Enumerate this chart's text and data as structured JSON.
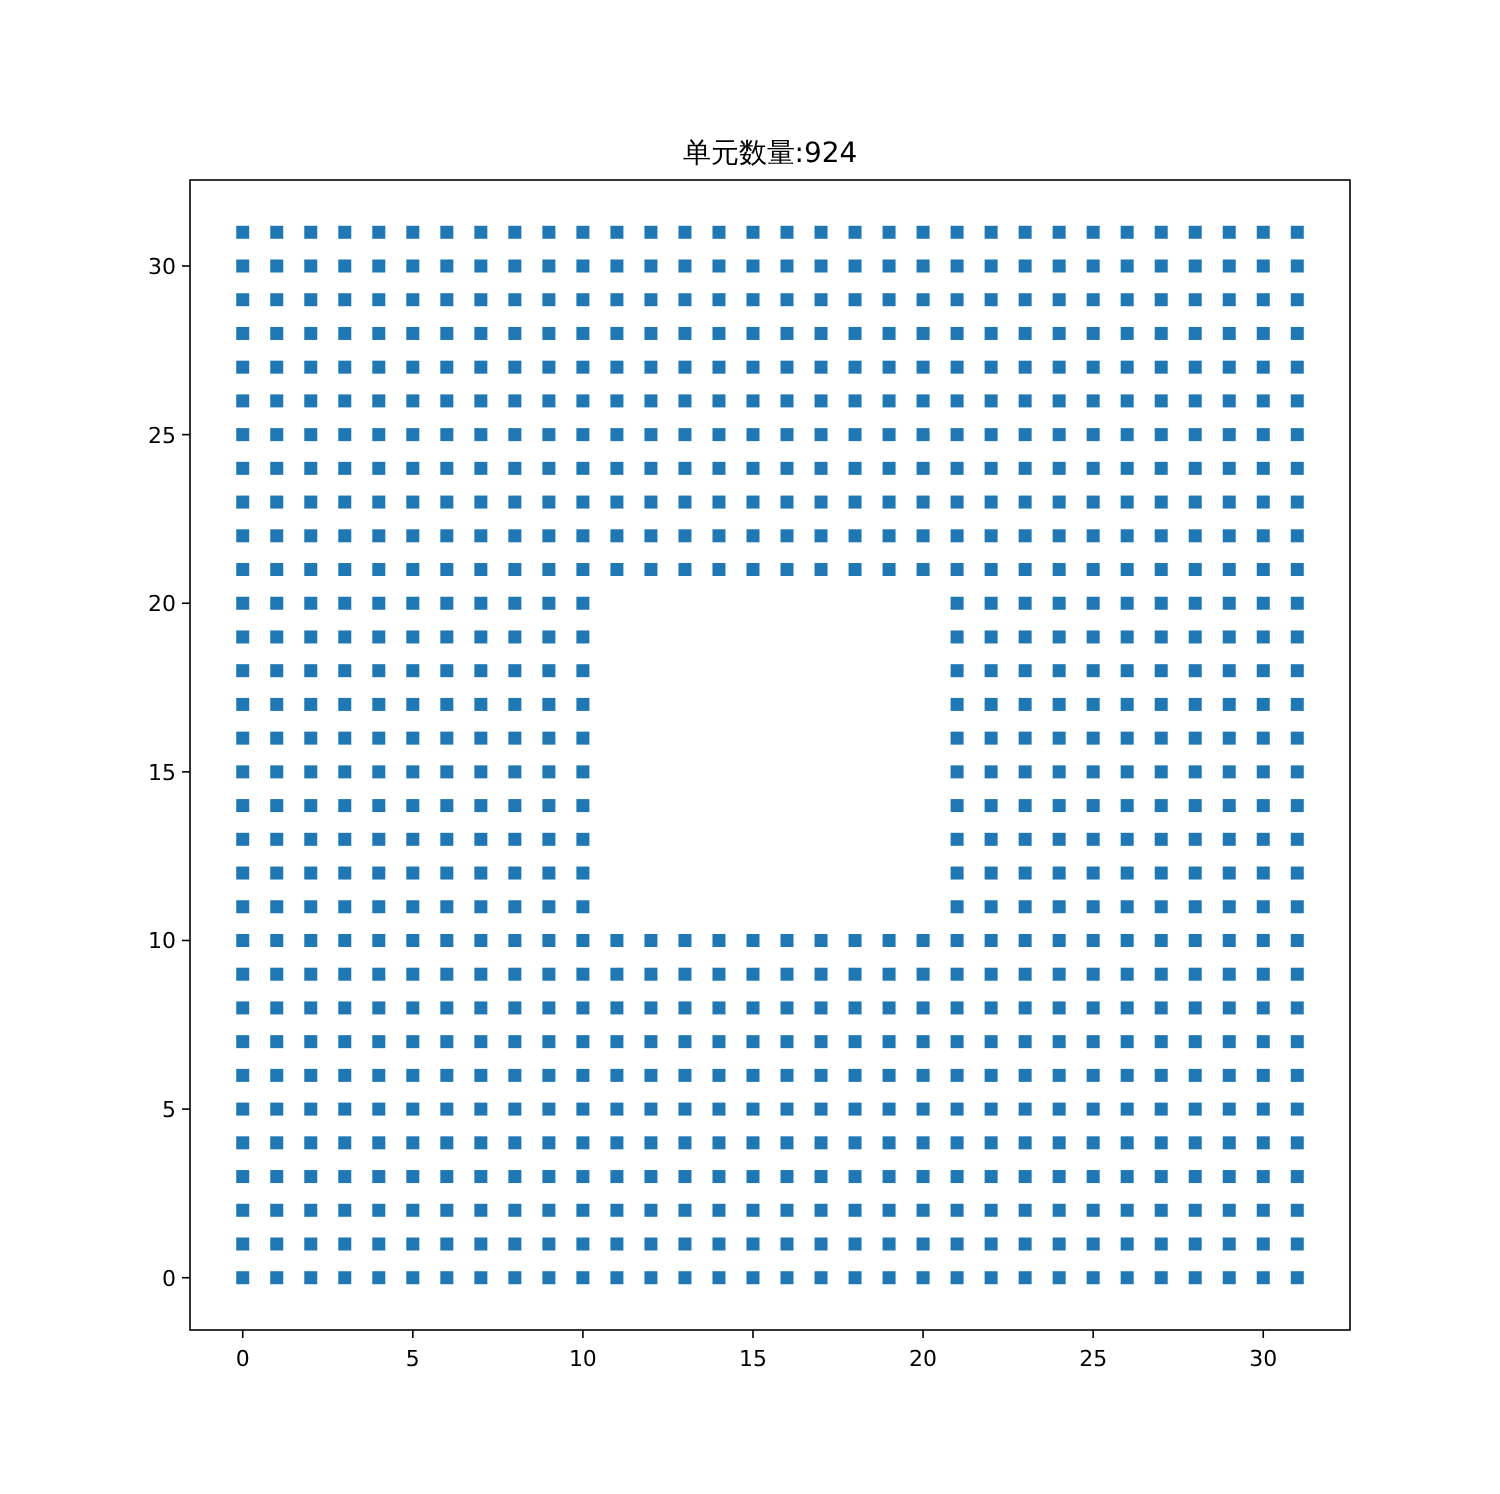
{
  "chart_data": {
    "type": "scatter",
    "title": "单元数量:924",
    "marker": "square",
    "grid": false,
    "xlim": [
      -1.55,
      32.55
    ],
    "ylim": [
      -1.55,
      32.55
    ],
    "xticks": [
      0,
      5,
      10,
      15,
      20,
      25,
      30
    ],
    "yticks": [
      0,
      5,
      10,
      15,
      20,
      25,
      30
    ],
    "series": [
      {
        "color": "#1f77b4",
        "x": [
          0,
          1,
          2,
          3,
          4,
          5,
          6,
          7,
          8,
          9,
          10,
          11,
          12,
          13,
          14,
          15,
          16,
          17,
          18,
          19,
          20,
          21,
          22,
          23,
          24,
          25,
          26,
          27,
          28,
          29,
          30,
          31,
          0,
          1,
          2,
          3,
          4,
          5,
          6,
          7,
          8,
          9,
          10,
          11,
          12,
          13,
          14,
          15,
          16,
          17,
          18,
          19,
          20,
          21,
          22,
          23,
          24,
          25,
          26,
          27,
          28,
          29,
          30,
          31,
          0,
          1,
          2,
          3,
          4,
          5,
          6,
          7,
          8,
          9,
          10,
          11,
          12,
          13,
          14,
          15,
          16,
          17,
          18,
          19,
          20,
          21,
          22,
          23,
          24,
          25,
          26,
          27,
          28,
          29,
          30,
          31,
          0,
          1,
          2,
          3,
          4,
          5,
          6,
          7,
          8,
          9,
          10,
          11,
          12,
          13,
          14,
          15,
          16,
          17,
          18,
          19,
          20,
          21,
          22,
          23,
          24,
          25,
          26,
          27,
          28,
          29,
          30,
          31,
          0,
          1,
          2,
          3,
          4,
          5,
          6,
          7,
          8,
          9,
          10,
          11,
          12,
          13,
          14,
          15,
          16,
          17,
          18,
          19,
          20,
          21,
          22,
          23,
          24,
          25,
          26,
          27,
          28,
          29,
          30,
          31,
          0,
          1,
          2,
          3,
          4,
          5,
          6,
          7,
          8,
          9,
          10,
          11,
          12,
          13,
          14,
          15,
          16,
          17,
          18,
          19,
          20,
          21,
          22,
          23,
          24,
          25,
          26,
          27,
          28,
          29,
          30,
          31,
          0,
          1,
          2,
          3,
          4,
          5,
          6,
          7,
          8,
          9,
          10,
          11,
          12,
          13,
          14,
          15,
          16,
          17,
          18,
          19,
          20,
          21,
          22,
          23,
          24,
          25,
          26,
          27,
          28,
          29,
          30,
          31,
          0,
          1,
          2,
          3,
          4,
          5,
          6,
          7,
          8,
          9,
          10,
          11,
          12,
          13,
          14,
          15,
          16,
          17,
          18,
          19,
          20,
          21,
          22,
          23,
          24,
          25,
          26,
          27,
          28,
          29,
          30,
          31,
          0,
          1,
          2,
          3,
          4,
          5,
          6,
          7,
          8,
          9,
          10,
          11,
          12,
          13,
          14,
          15,
          16,
          17,
          18,
          19,
          20,
          21,
          22,
          23,
          24,
          25,
          26,
          27,
          28,
          29,
          30,
          31,
          0,
          1,
          2,
          3,
          4,
          5,
          6,
          7,
          8,
          9,
          10,
          11,
          12,
          13,
          14,
          15,
          16,
          17,
          18,
          19,
          20,
          21,
          22,
          23,
          24,
          25,
          26,
          27,
          28,
          29,
          30,
          31,
          0,
          1,
          2,
          3,
          4,
          5,
          6,
          7,
          8,
          9,
          10,
          11,
          12,
          13,
          14,
          15,
          16,
          17,
          18,
          19,
          20,
          21,
          22,
          23,
          24,
          25,
          26,
          27,
          28,
          29,
          30,
          31,
          0,
          1,
          2,
          3,
          4,
          5,
          6,
          7,
          8,
          9,
          10,
          21,
          22,
          23,
          24,
          25,
          26,
          27,
          28,
          29,
          30,
          31,
          0,
          1,
          2,
          3,
          4,
          5,
          6,
          7,
          8,
          9,
          10,
          21,
          22,
          23,
          24,
          25,
          26,
          27,
          28,
          29,
          30,
          31,
          0,
          1,
          2,
          3,
          4,
          5,
          6,
          7,
          8,
          9,
          10,
          21,
          22,
          23,
          24,
          25,
          26,
          27,
          28,
          29,
          30,
          31,
          0,
          1,
          2,
          3,
          4,
          5,
          6,
          7,
          8,
          9,
          10,
          21,
          22,
          23,
          24,
          25,
          26,
          27,
          28,
          29,
          30,
          31,
          0,
          1,
          2,
          3,
          4,
          5,
          6,
          7,
          8,
          9,
          10,
          21,
          22,
          23,
          24,
          25,
          26,
          27,
          28,
          29,
          30,
          31,
          0,
          1,
          2,
          3,
          4,
          5,
          6,
          7,
          8,
          9,
          10,
          21,
          22,
          23,
          24,
          25,
          26,
          27,
          28,
          29,
          30,
          31,
          0,
          1,
          2,
          3,
          4,
          5,
          6,
          7,
          8,
          9,
          10,
          21,
          22,
          23,
          24,
          25,
          26,
          27,
          28,
          29,
          30,
          31,
          0,
          1,
          2,
          3,
          4,
          5,
          6,
          7,
          8,
          9,
          10,
          21,
          22,
          23,
          24,
          25,
          26,
          27,
          28,
          29,
          30,
          31,
          0,
          1,
          2,
          3,
          4,
          5,
          6,
          7,
          8,
          9,
          10,
          21,
          22,
          23,
          24,
          25,
          26,
          27,
          28,
          29,
          30,
          31,
          0,
          1,
          2,
          3,
          4,
          5,
          6,
          7,
          8,
          9,
          10,
          21,
          22,
          23,
          24,
          25,
          26,
          27,
          28,
          29,
          30,
          31,
          0,
          1,
          2,
          3,
          4,
          5,
          6,
          7,
          8,
          9,
          10,
          11,
          12,
          13,
          14,
          15,
          16,
          17,
          18,
          19,
          20,
          21,
          22,
          23,
          24,
          25,
          26,
          27,
          28,
          29,
          30,
          31,
          0,
          1,
          2,
          3,
          4,
          5,
          6,
          7,
          8,
          9,
          10,
          11,
          12,
          13,
          14,
          15,
          16,
          17,
          18,
          19,
          20,
          21,
          22,
          23,
          24,
          25,
          26,
          27,
          28,
          29,
          30,
          31,
          0,
          1,
          2,
          3,
          4,
          5,
          6,
          7,
          8,
          9,
          10,
          11,
          12,
          13,
          14,
          15,
          16,
          17,
          18,
          19,
          20,
          21,
          22,
          23,
          24,
          25,
          26,
          27,
          28,
          29,
          30,
          31,
          0,
          1,
          2,
          3,
          4,
          5,
          6,
          7,
          8,
          9,
          10,
          11,
          12,
          13,
          14,
          15,
          16,
          17,
          18,
          19,
          20,
          21,
          22,
          23,
          24,
          25,
          26,
          27,
          28,
          29,
          30,
          31,
          0,
          1,
          2,
          3,
          4,
          5,
          6,
          7,
          8,
          9,
          10,
          11,
          12,
          13,
          14,
          15,
          16,
          17,
          18,
          19,
          20,
          21,
          22,
          23,
          24,
          25,
          26,
          27,
          28,
          29,
          30,
          31,
          0,
          1,
          2,
          3,
          4,
          5,
          6,
          7,
          8,
          9,
          10,
          11,
          12,
          13,
          14,
          15,
          16,
          17,
          18,
          19,
          20,
          21,
          22,
          23,
          24,
          25,
          26,
          27,
          28,
          29,
          30,
          31,
          0,
          1,
          2,
          3,
          4,
          5,
          6,
          7,
          8,
          9,
          10,
          11,
          12,
          13,
          14,
          15,
          16,
          17,
          18,
          19,
          20,
          21,
          22,
          23,
          24,
          25,
          26,
          27,
          28,
          29,
          30,
          31,
          0,
          1,
          2,
          3,
          4,
          5,
          6,
          7,
          8,
          9,
          10,
          11,
          12,
          13,
          14,
          15,
          16,
          17,
          18,
          19,
          20,
          21,
          22,
          23,
          24,
          25,
          26,
          27,
          28,
          29,
          30,
          31,
          0,
          1,
          2,
          3,
          4,
          5,
          6,
          7,
          8,
          9,
          10,
          11,
          12,
          13,
          14,
          15,
          16,
          17,
          18,
          19,
          20,
          21,
          22,
          23,
          24,
          25,
          26,
          27,
          28,
          29,
          30,
          31,
          0,
          1,
          2,
          3,
          4,
          5,
          6,
          7,
          8,
          9,
          10,
          11,
          12,
          13,
          14,
          15,
          16,
          17,
          18,
          19,
          20,
          21,
          22,
          23,
          24,
          25,
          26,
          27,
          28,
          29,
          30,
          31,
          0,
          1,
          2,
          3,
          4,
          5,
          6,
          7,
          8,
          9,
          10,
          11,
          12,
          13,
          14,
          15,
          16,
          17,
          18,
          19,
          20,
          21,
          22,
          23,
          24,
          25,
          26,
          27,
          28,
          29,
          30,
          31
        ],
        "values": [
          0,
          0,
          0,
          0,
          0,
          0,
          0,
          0,
          0,
          0,
          0,
          0,
          0,
          0,
          0,
          0,
          0,
          0,
          0,
          0,
          0,
          0,
          0,
          0,
          0,
          0,
          0,
          0,
          0,
          0,
          0,
          0,
          1,
          1,
          1,
          1,
          1,
          1,
          1,
          1,
          1,
          1,
          1,
          1,
          1,
          1,
          1,
          1,
          1,
          1,
          1,
          1,
          1,
          1,
          1,
          1,
          1,
          1,
          1,
          1,
          1,
          1,
          1,
          1,
          2,
          2,
          2,
          2,
          2,
          2,
          2,
          2,
          2,
          2,
          2,
          2,
          2,
          2,
          2,
          2,
          2,
          2,
          2,
          2,
          2,
          2,
          2,
          2,
          2,
          2,
          2,
          2,
          2,
          2,
          2,
          2,
          3,
          3,
          3,
          3,
          3,
          3,
          3,
          3,
          3,
          3,
          3,
          3,
          3,
          3,
          3,
          3,
          3,
          3,
          3,
          3,
          3,
          3,
          3,
          3,
          3,
          3,
          3,
          3,
          3,
          3,
          3,
          3,
          4,
          4,
          4,
          4,
          4,
          4,
          4,
          4,
          4,
          4,
          4,
          4,
          4,
          4,
          4,
          4,
          4,
          4,
          4,
          4,
          4,
          4,
          4,
          4,
          4,
          4,
          4,
          4,
          4,
          4,
          4,
          4,
          5,
          5,
          5,
          5,
          5,
          5,
          5,
          5,
          5,
          5,
          5,
          5,
          5,
          5,
          5,
          5,
          5,
          5,
          5,
          5,
          5,
          5,
          5,
          5,
          5,
          5,
          5,
          5,
          5,
          5,
          5,
          5,
          6,
          6,
          6,
          6,
          6,
          6,
          6,
          6,
          6,
          6,
          6,
          6,
          6,
          6,
          6,
          6,
          6,
          6,
          6,
          6,
          6,
          6,
          6,
          6,
          6,
          6,
          6,
          6,
          6,
          6,
          6,
          6,
          7,
          7,
          7,
          7,
          7,
          7,
          7,
          7,
          7,
          7,
          7,
          7,
          7,
          7,
          7,
          7,
          7,
          7,
          7,
          7,
          7,
          7,
          7,
          7,
          7,
          7,
          7,
          7,
          7,
          7,
          7,
          7,
          8,
          8,
          8,
          8,
          8,
          8,
          8,
          8,
          8,
          8,
          8,
          8,
          8,
          8,
          8,
          8,
          8,
          8,
          8,
          8,
          8,
          8,
          8,
          8,
          8,
          8,
          8,
          8,
          8,
          8,
          8,
          8,
          9,
          9,
          9,
          9,
          9,
          9,
          9,
          9,
          9,
          9,
          9,
          9,
          9,
          9,
          9,
          9,
          9,
          9,
          9,
          9,
          9,
          9,
          9,
          9,
          9,
          9,
          9,
          9,
          9,
          9,
          9,
          9,
          10,
          10,
          10,
          10,
          10,
          10,
          10,
          10,
          10,
          10,
          10,
          10,
          10,
          10,
          10,
          10,
          10,
          10,
          10,
          10,
          10,
          10,
          10,
          10,
          10,
          10,
          10,
          10,
          10,
          10,
          10,
          10,
          11,
          11,
          11,
          11,
          11,
          11,
          11,
          11,
          11,
          11,
          11,
          11,
          11,
          11,
          11,
          11,
          11,
          11,
          11,
          11,
          11,
          11,
          12,
          12,
          12,
          12,
          12,
          12,
          12,
          12,
          12,
          12,
          12,
          12,
          12,
          12,
          12,
          12,
          12,
          12,
          12,
          12,
          12,
          12,
          13,
          13,
          13,
          13,
          13,
          13,
          13,
          13,
          13,
          13,
          13,
          13,
          13,
          13,
          13,
          13,
          13,
          13,
          13,
          13,
          13,
          13,
          14,
          14,
          14,
          14,
          14,
          14,
          14,
          14,
          14,
          14,
          14,
          14,
          14,
          14,
          14,
          14,
          14,
          14,
          14,
          14,
          14,
          14,
          15,
          15,
          15,
          15,
          15,
          15,
          15,
          15,
          15,
          15,
          15,
          15,
          15,
          15,
          15,
          15,
          15,
          15,
          15,
          15,
          15,
          15,
          16,
          16,
          16,
          16,
          16,
          16,
          16,
          16,
          16,
          16,
          16,
          16,
          16,
          16,
          16,
          16,
          16,
          16,
          16,
          16,
          16,
          16,
          17,
          17,
          17,
          17,
          17,
          17,
          17,
          17,
          17,
          17,
          17,
          17,
          17,
          17,
          17,
          17,
          17,
          17,
          17,
          17,
          17,
          17,
          18,
          18,
          18,
          18,
          18,
          18,
          18,
          18,
          18,
          18,
          18,
          18,
          18,
          18,
          18,
          18,
          18,
          18,
          18,
          18,
          18,
          18,
          19,
          19,
          19,
          19,
          19,
          19,
          19,
          19,
          19,
          19,
          19,
          19,
          19,
          19,
          19,
          19,
          19,
          19,
          19,
          19,
          19,
          19,
          20,
          20,
          20,
          20,
          20,
          20,
          20,
          20,
          20,
          20,
          20,
          20,
          20,
          20,
          20,
          20,
          20,
          20,
          20,
          20,
          20,
          20,
          21,
          21,
          21,
          21,
          21,
          21,
          21,
          21,
          21,
          21,
          21,
          21,
          21,
          21,
          21,
          21,
          21,
          21,
          21,
          21,
          21,
          21,
          21,
          21,
          21,
          21,
          21,
          21,
          21,
          21,
          21,
          21,
          22,
          22,
          22,
          22,
          22,
          22,
          22,
          22,
          22,
          22,
          22,
          22,
          22,
          22,
          22,
          22,
          22,
          22,
          22,
          22,
          22,
          22,
          22,
          22,
          22,
          22,
          22,
          22,
          22,
          22,
          22,
          22,
          23,
          23,
          23,
          23,
          23,
          23,
          23,
          23,
          23,
          23,
          23,
          23,
          23,
          23,
          23,
          23,
          23,
          23,
          23,
          23,
          23,
          23,
          23,
          23,
          23,
          23,
          23,
          23,
          23,
          23,
          23,
          23,
          24,
          24,
          24,
          24,
          24,
          24,
          24,
          24,
          24,
          24,
          24,
          24,
          24,
          24,
          24,
          24,
          24,
          24,
          24,
          24,
          24,
          24,
          24,
          24,
          24,
          24,
          24,
          24,
          24,
          24,
          24,
          24,
          25,
          25,
          25,
          25,
          25,
          25,
          25,
          25,
          25,
          25,
          25,
          25,
          25,
          25,
          25,
          25,
          25,
          25,
          25,
          25,
          25,
          25,
          25,
          25,
          25,
          25,
          25,
          25,
          25,
          25,
          25,
          25,
          26,
          26,
          26,
          26,
          26,
          26,
          26,
          26,
          26,
          26,
          26,
          26,
          26,
          26,
          26,
          26,
          26,
          26,
          26,
          26,
          26,
          26,
          26,
          26,
          26,
          26,
          26,
          26,
          26,
          26,
          26,
          26,
          27,
          27,
          27,
          27,
          27,
          27,
          27,
          27,
          27,
          27,
          27,
          27,
          27,
          27,
          27,
          27,
          27,
          27,
          27,
          27,
          27,
          27,
          27,
          27,
          27,
          27,
          27,
          27,
          27,
          27,
          27,
          27,
          28,
          28,
          28,
          28,
          28,
          28,
          28,
          28,
          28,
          28,
          28,
          28,
          28,
          28,
          28,
          28,
          28,
          28,
          28,
          28,
          28,
          28,
          28,
          28,
          28,
          28,
          28,
          28,
          28,
          28,
          28,
          28,
          29,
          29,
          29,
          29,
          29,
          29,
          29,
          29,
          29,
          29,
          29,
          29,
          29,
          29,
          29,
          29,
          29,
          29,
          29,
          29,
          29,
          29,
          29,
          29,
          29,
          29,
          29,
          29,
          29,
          29,
          29,
          29,
          30,
          30,
          30,
          30,
          30,
          30,
          30,
          30,
          30,
          30,
          30,
          30,
          30,
          30,
          30,
          30,
          30,
          30,
          30,
          30,
          30,
          30,
          30,
          30,
          30,
          30,
          30,
          30,
          30,
          30,
          30,
          30,
          31,
          31,
          31,
          31,
          31,
          31,
          31,
          31,
          31,
          31,
          31,
          31,
          31,
          31,
          31,
          31,
          31,
          31,
          31,
          31,
          31,
          31,
          31,
          31,
          31,
          31,
          31,
          31,
          31,
          31,
          31,
          31
        ]
      }
    ]
  }
}
